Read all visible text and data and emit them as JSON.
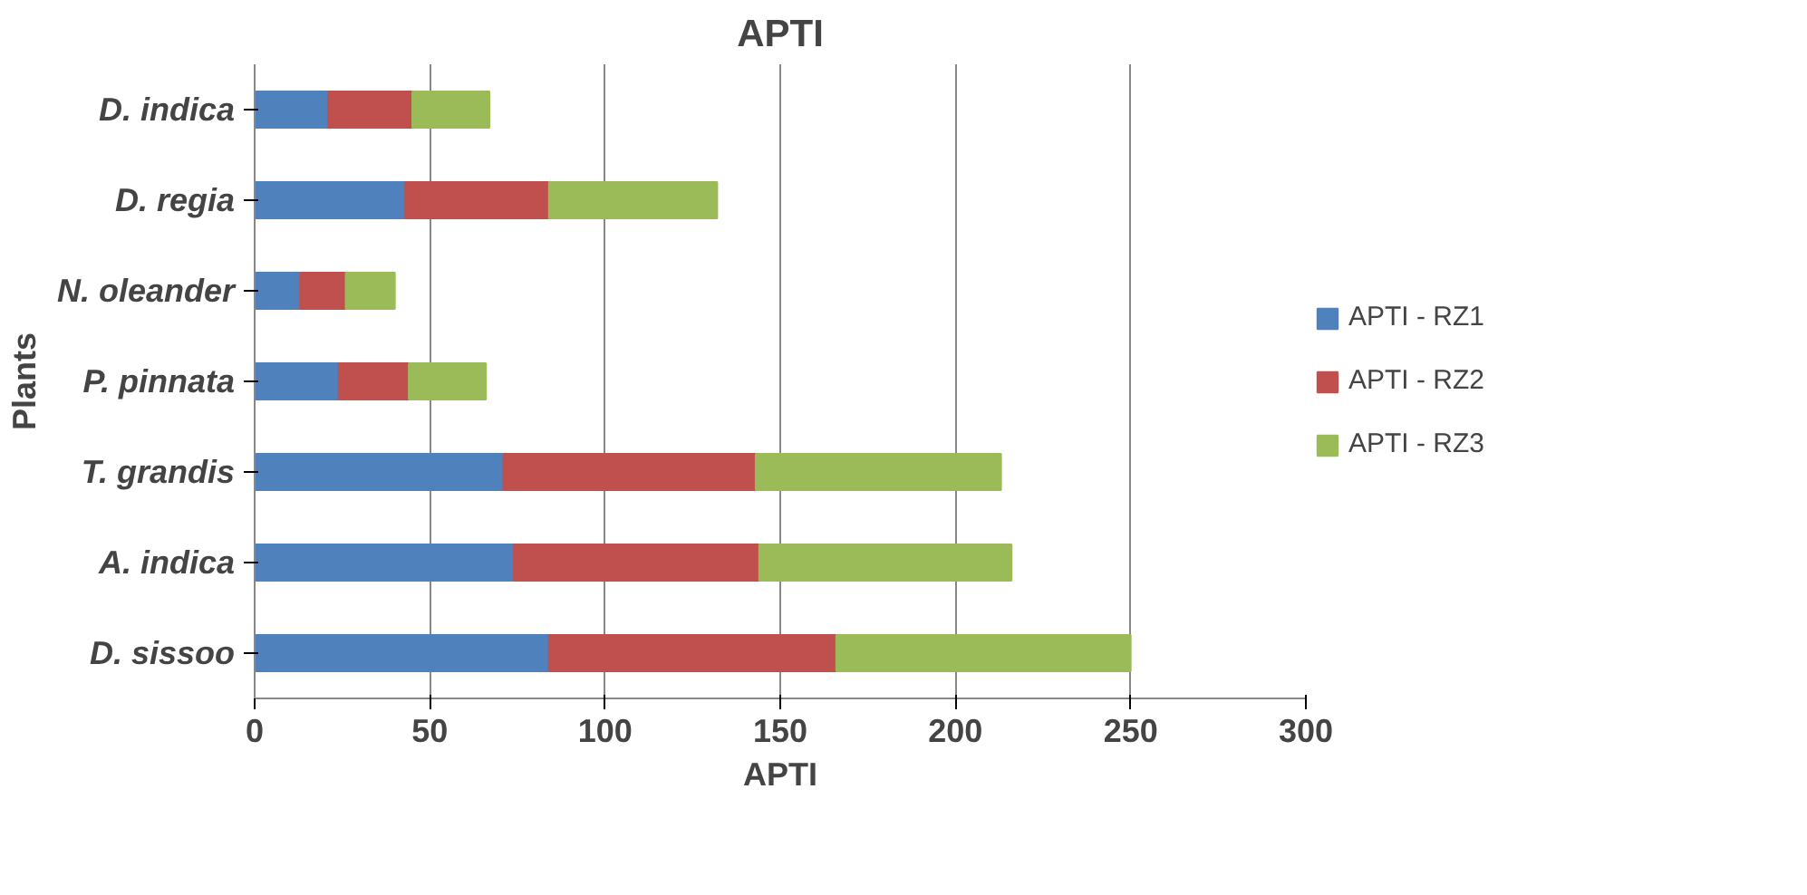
{
  "chart_data": {
    "type": "bar",
    "title": "APTI",
    "xlabel": "APTI",
    "ylabel": "Plants",
    "orientation": "horizontal",
    "stacked": true,
    "categories": [
      "D. indica",
      "D. regia",
      "N. oleander",
      "P. pinnata",
      "T. grandis",
      "A. indica",
      "D. sissoo"
    ],
    "series": [
      {
        "name": "APTI - RZ1",
        "color": "#4f81bd",
        "values": [
          21,
          43,
          13,
          24,
          71,
          74,
          84
        ]
      },
      {
        "name": "APTI - RZ2",
        "color": "#c0504d",
        "values": [
          24,
          41,
          13,
          20,
          72,
          70,
          82
        ]
      },
      {
        "name": "APTI - RZ3",
        "color": "#9bbb59",
        "values": [
          22,
          48,
          14,
          22,
          70,
          72,
          84
        ]
      }
    ],
    "xlim": [
      0,
      300
    ],
    "xticks": [
      0,
      50,
      100,
      150,
      200,
      250,
      300
    ],
    "grid": "x",
    "legend": "right"
  }
}
